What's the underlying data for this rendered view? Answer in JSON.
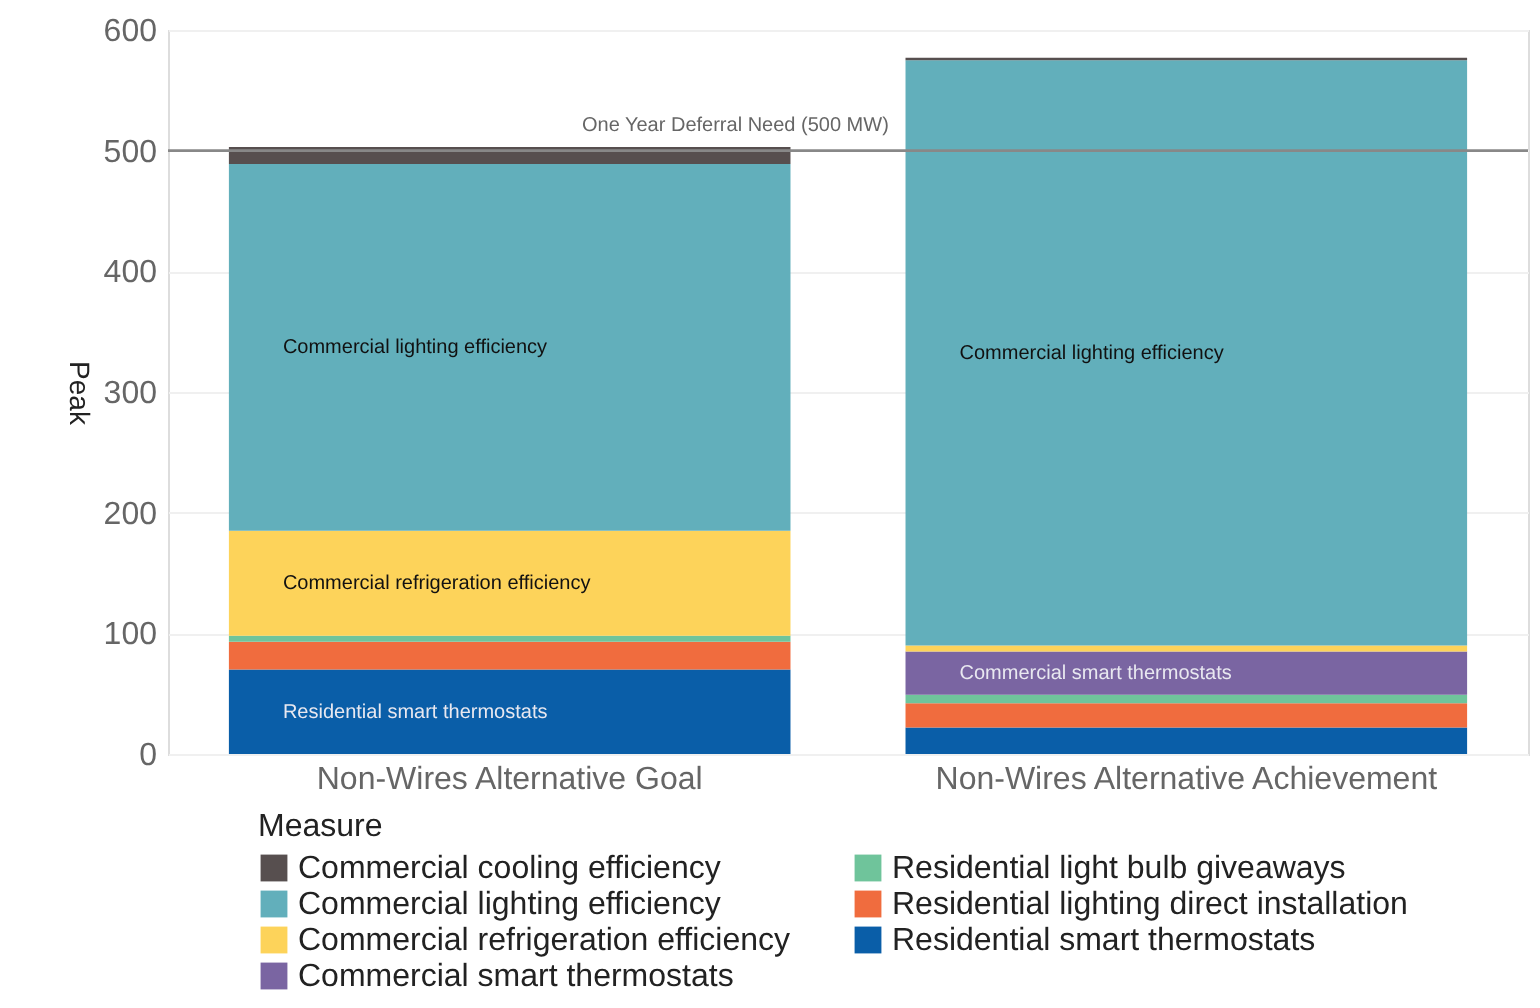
{
  "chart_data": {
    "type": "bar",
    "stacked": true,
    "ylabel": "Peak",
    "legend_title": "Measure",
    "legend": "bottom",
    "categories": [
      "Non-Wires Alternative Goal",
      "Non-Wires Alternative Achievement"
    ],
    "series": [
      {
        "name": "Residential smart thermostats",
        "color": "#0a5ea8",
        "values": [
          70,
          22
        ],
        "value_labels": [
          "Residential smart thermostats",
          null
        ]
      },
      {
        "name": "Residential lighting direct installation",
        "color": "#f06c3e",
        "values": [
          23,
          20
        ]
      },
      {
        "name": "Residential light bulb giveaways",
        "color": "#6fc49b",
        "values": [
          5,
          7
        ]
      },
      {
        "name": "Commercial smart thermostats",
        "color": "#7a65a2",
        "values": [
          null,
          36
        ],
        "value_labels": [
          null,
          "Commercial smart thermostats"
        ]
      },
      {
        "name": "Commercial refrigeration efficiency",
        "color": "#fdd35a",
        "values": [
          87,
          5
        ],
        "value_labels": [
          "Commercial refrigeration efficiency",
          null
        ]
      },
      {
        "name": "Commercial lighting efficiency",
        "color": "#62afbb",
        "values": [
          304,
          485
        ],
        "value_labels": [
          "Commercial lighting efficiency",
          "Commercial lighting efficiency"
        ]
      },
      {
        "name": "Commercial cooling efficiency",
        "color": "#574f4f",
        "values": [
          14,
          2
        ]
      }
    ],
    "ylim": [
      0,
      600
    ],
    "yticks": [
      0,
      100,
      200,
      300,
      400,
      500,
      600
    ],
    "grid": "y",
    "ref_lines": [
      {
        "axis": "y",
        "value": 500,
        "label": "One Year Deferral Need (500 MW)"
      }
    ]
  }
}
